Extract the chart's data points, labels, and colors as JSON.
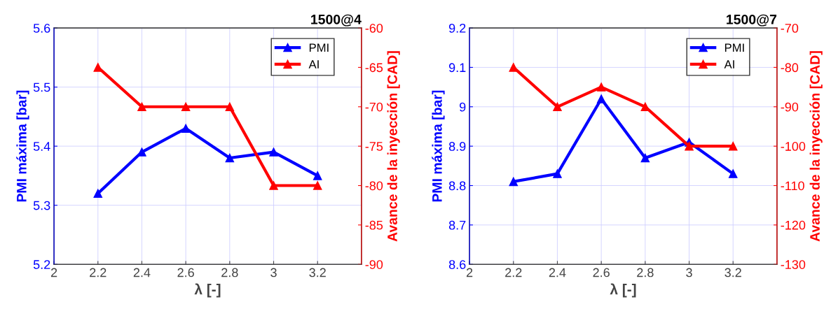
{
  "chart_data": [
    {
      "type": "line",
      "title": "1500@4",
      "xlabel": "λ [-]",
      "ylabel": "PMI máxima [bar]",
      "y2label": "Avance de la inyección [CAD]",
      "x": [
        2.2,
        2.4,
        2.6,
        2.8,
        3,
        3.2
      ],
      "series": [
        {
          "name": "PMI",
          "color": "#0000ff",
          "values": [
            5.32,
            5.39,
            5.43,
            5.38,
            5.39,
            5.35
          ]
        },
        {
          "name": "AI",
          "color": "#ff0000",
          "axis": "y2",
          "values": [
            -65,
            -70,
            -70,
            -70,
            -80,
            -80
          ]
        }
      ],
      "xlim": [
        2,
        3.4
      ],
      "xticks": [
        2,
        2.2,
        2.4,
        2.6,
        2.8,
        3,
        3.2
      ],
      "ylim": [
        5.2,
        5.6
      ],
      "yticks": [
        5.2,
        5.3,
        5.4,
        5.5,
        5.6
      ],
      "y2lim": [
        -90,
        -60
      ],
      "y2ticks": [
        -90,
        -85,
        -80,
        -75,
        -70,
        -65,
        -60
      ],
      "grid": true,
      "legend": "top right",
      "marker": "triangle",
      "line_style": "solid"
    },
    {
      "type": "line",
      "title": "1500@7",
      "xlabel": "λ [-]",
      "ylabel": "PMI máxima [bar]",
      "y2label": "Avance de la inyección [CAD]",
      "x": [
        2.2,
        2.4,
        2.6,
        2.8,
        3,
        3.2
      ],
      "series": [
        {
          "name": "PMI",
          "color": "#0000ff",
          "values": [
            8.81,
            8.83,
            9.02,
            8.87,
            8.91,
            8.83
          ]
        },
        {
          "name": "AI",
          "color": "#ff0000",
          "axis": "y2",
          "values": [
            -80,
            -90,
            -85,
            -90,
            -100,
            -100
          ]
        }
      ],
      "xlim": [
        2,
        3.4
      ],
      "xticks": [
        2,
        2.2,
        2.4,
        2.6,
        2.8,
        3,
        3.2
      ],
      "ylim": [
        8.6,
        9.2
      ],
      "yticks": [
        8.6,
        8.7,
        8.8,
        8.9,
        9,
        9.1,
        9.2
      ],
      "y2lim": [
        -130,
        -70
      ],
      "y2ticks": [
        -130,
        -120,
        -110,
        -100,
        -90,
        -80,
        -70
      ],
      "grid": true,
      "legend": "top right",
      "marker": "triangle",
      "line_style": "solid"
    }
  ]
}
